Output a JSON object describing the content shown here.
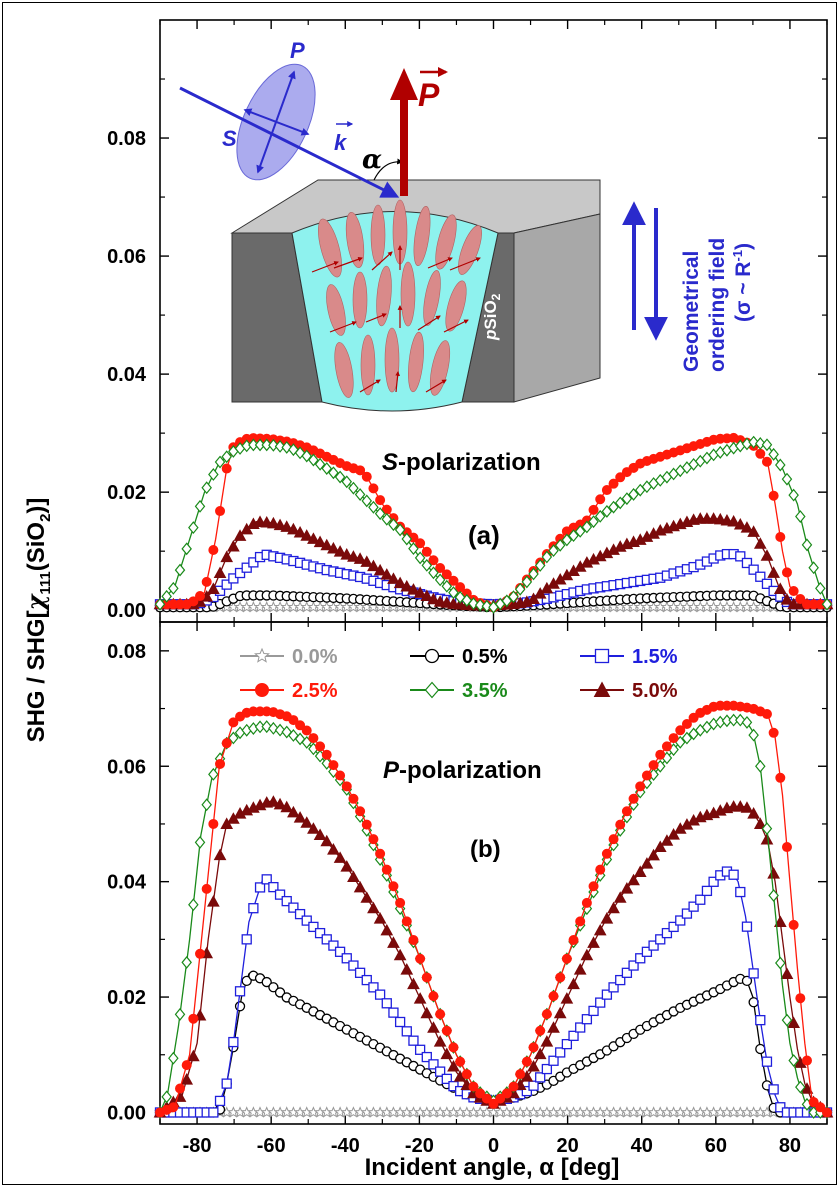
{
  "figure": {
    "ylabel": "SHG / SHG[χ111(SiO2)]",
    "ylabel_parts": {
      "prefix": "SHG / SHG[",
      "chi": "χ",
      "sub": "111",
      "mid": "(SiO",
      "sub2": "2",
      "suffix": ")]"
    },
    "xlabel": "Incident angle, α [deg]",
    "inset": {
      "P_label": "P",
      "S_label": "S",
      "k_label": "k",
      "alpha_label": "α",
      "bigP_label": "P",
      "material_label_prefix": "p",
      "material_label": "SiO",
      "material_sub": "2",
      "field_line1": "Geometrical",
      "field_line2": "ordering field",
      "field_line3": "(σ ~ R",
      "field_sup": "-1",
      "field_close": ")"
    },
    "colors": {
      "s0": "#999999",
      "s05": "#000000",
      "s15": "#1f1fdd",
      "s25": "#ff1a0a",
      "s35": "#1a8a1a",
      "s50": "#7a0a0a",
      "inset_blue": "#2a2acc",
      "arrow_red": "#b00000"
    }
  },
  "chart_data": [
    {
      "panel": "(a)",
      "type": "scatter",
      "annotation": "S-polarization",
      "annotation_italic": "S",
      "annotation_rest": "-polarization",
      "xlim": [
        -90,
        90
      ],
      "ylim": [
        -0.002,
        0.1
      ],
      "yticks": [
        "0.00",
        "0.02",
        "0.04",
        "0.06",
        "0.08"
      ],
      "series": [
        {
          "name": "0.0%",
          "marker": "star",
          "color": "#999999",
          "x": [
            -90,
            -60,
            -30,
            0,
            30,
            60,
            90
          ],
          "y": [
            0.0005,
            0.0005,
            0.0005,
            0.0005,
            0.0005,
            0.0005,
            0.0005
          ]
        },
        {
          "name": "0.5%",
          "marker": "circle-open",
          "color": "#000000",
          "x": [
            -90,
            -76,
            -72,
            -68,
            -60,
            -40,
            -20,
            -10,
            0,
            10,
            20,
            40,
            60,
            70,
            74,
            78,
            90
          ],
          "y": [
            0.0005,
            0.0005,
            0.0015,
            0.0025,
            0.0025,
            0.002,
            0.0012,
            0.0008,
            0.0005,
            0.0008,
            0.0012,
            0.002,
            0.0025,
            0.0025,
            0.0015,
            0.0005,
            0.0005
          ]
        },
        {
          "name": "1.5%",
          "marker": "square-open",
          "color": "#1f1fdd",
          "x": [
            -90,
            -80,
            -76,
            -70,
            -65,
            -62,
            -55,
            -45,
            -35,
            -25,
            -15,
            -8,
            0,
            8,
            15,
            25,
            35,
            45,
            55,
            62,
            66,
            70,
            76,
            80,
            90
          ],
          "y": [
            0.001,
            0.001,
            0.002,
            0.0055,
            0.008,
            0.0095,
            0.0085,
            0.0068,
            0.0055,
            0.0035,
            0.002,
            0.0012,
            0.001,
            0.0012,
            0.002,
            0.0035,
            0.0045,
            0.0055,
            0.0075,
            0.0095,
            0.0095,
            0.007,
            0.003,
            0.001,
            0.001
          ]
        },
        {
          "name": "2.5%",
          "marker": "circle-filled",
          "color": "#ff1a0a",
          "x": [
            -90,
            -82,
            -78,
            -75,
            -72,
            -70,
            -66,
            -60,
            -55,
            -50,
            -45,
            -40,
            -35,
            -30,
            -25,
            -20,
            -15,
            -10,
            -5,
            0,
            5,
            10,
            15,
            20,
            25,
            30,
            35,
            40,
            45,
            50,
            55,
            60,
            65,
            70,
            74,
            76,
            78,
            80,
            84,
            90
          ],
          "y": [
            0.001,
            0.001,
            0.003,
            0.012,
            0.024,
            0.028,
            0.0292,
            0.029,
            0.0285,
            0.0275,
            0.026,
            0.0245,
            0.0235,
            0.018,
            0.014,
            0.0115,
            0.0075,
            0.0045,
            0.0015,
            0.0005,
            0.002,
            0.006,
            0.01,
            0.0135,
            0.015,
            0.02,
            0.023,
            0.025,
            0.026,
            0.027,
            0.028,
            0.029,
            0.0292,
            0.028,
            0.025,
            0.018,
            0.01,
            0.004,
            0.001,
            0.001
          ]
        },
        {
          "name": "3.5%",
          "marker": "diamond-open",
          "color": "#1a8a1a",
          "x": [
            -90,
            -86,
            -82,
            -78,
            -74,
            -70,
            -66,
            -60,
            -55,
            -50,
            -45,
            -40,
            -35,
            -30,
            -25,
            -20,
            -15,
            -10,
            -5,
            0,
            5,
            10,
            15,
            20,
            25,
            30,
            35,
            40,
            45,
            50,
            55,
            60,
            65,
            70,
            74,
            78,
            82,
            85,
            88,
            90
          ],
          "y": [
            0.001,
            0.004,
            0.012,
            0.02,
            0.025,
            0.027,
            0.028,
            0.028,
            0.0275,
            0.026,
            0.024,
            0.022,
            0.019,
            0.016,
            0.0135,
            0.009,
            0.0055,
            0.0025,
            0.001,
            0.0005,
            0.002,
            0.0055,
            0.0095,
            0.012,
            0.014,
            0.0165,
            0.0185,
            0.0205,
            0.022,
            0.0235,
            0.025,
            0.0265,
            0.0275,
            0.0285,
            0.028,
            0.024,
            0.018,
            0.01,
            0.004,
            0.001
          ]
        },
        {
          "name": "5.0%",
          "marker": "triangle-filled",
          "color": "#7a0a0a",
          "x": [
            -90,
            -80,
            -76,
            -72,
            -68,
            -64,
            -60,
            -55,
            -50,
            -45,
            -40,
            -35,
            -30,
            -25,
            -20,
            -15,
            -10,
            -5,
            0,
            5,
            10,
            15,
            20,
            25,
            30,
            35,
            40,
            45,
            50,
            55,
            60,
            65,
            70,
            74,
            77,
            80,
            90
          ],
          "y": [
            0.001,
            0.001,
            0.003,
            0.009,
            0.013,
            0.015,
            0.0148,
            0.014,
            0.0125,
            0.011,
            0.0095,
            0.0085,
            0.0065,
            0.0045,
            0.003,
            0.0015,
            0.001,
            0.0008,
            0.0008,
            0.001,
            0.0015,
            0.004,
            0.006,
            0.008,
            0.0095,
            0.011,
            0.012,
            0.0135,
            0.0145,
            0.0155,
            0.0155,
            0.015,
            0.0135,
            0.009,
            0.004,
            0.001,
            0.001
          ]
        }
      ]
    },
    {
      "panel": "(b)",
      "type": "scatter",
      "annotation": "P-polarization",
      "annotation_italic": "P",
      "annotation_rest": "-polarization",
      "xlim": [
        -90,
        90
      ],
      "ylim": [
        -0.002,
        0.085
      ],
      "xticks": [
        "-80",
        "-60",
        "-40",
        "-20",
        "0",
        "20",
        "40",
        "60",
        "80"
      ],
      "yticks": [
        "0.00",
        "0.02",
        "0.04",
        "0.06",
        "0.08"
      ],
      "legend": {
        "placement": "top",
        "columns": 3
      },
      "series": [
        {
          "name": "0.0%",
          "marker": "star",
          "color": "#999999",
          "x": [
            -90,
            -60,
            -30,
            0,
            30,
            60,
            90
          ],
          "y": [
            0,
            0,
            0,
            0,
            0,
            0,
            0
          ]
        },
        {
          "name": "0.5%",
          "marker": "circle-open",
          "color": "#000000",
          "x": [
            -90,
            -74,
            -72,
            -70,
            -68,
            -66,
            -62,
            -56,
            -50,
            -40,
            -30,
            -20,
            -10,
            -5,
            0,
            5,
            10,
            15,
            20,
            30,
            40,
            50,
            60,
            66,
            68,
            70,
            72,
            74,
            76,
            90
          ],
          "y": [
            0,
            0,
            0.005,
            0.012,
            0.02,
            0.024,
            0.023,
            0.02,
            0.018,
            0.0145,
            0.011,
            0.0075,
            0.004,
            0.0025,
            0.002,
            0.0025,
            0.0035,
            0.005,
            0.007,
            0.0105,
            0.0145,
            0.018,
            0.021,
            0.023,
            0.0235,
            0.02,
            0.011,
            0.004,
            0,
            0
          ]
        },
        {
          "name": "1.5%",
          "marker": "square-open",
          "color": "#1f1fdd",
          "x": [
            -90,
            -75,
            -72,
            -70,
            -68,
            -66,
            -62,
            -58,
            -50,
            -40,
            -30,
            -20,
            -15,
            -10,
            -5,
            0,
            5,
            10,
            15,
            20,
            30,
            40,
            50,
            56,
            60,
            62,
            64,
            66,
            68,
            70,
            72,
            74,
            76,
            78,
            90
          ],
          "y": [
            0,
            0,
            0.005,
            0.013,
            0.023,
            0.033,
            0.041,
            0.038,
            0.033,
            0.027,
            0.02,
            0.011,
            0.0075,
            0.004,
            0.0025,
            0.002,
            0.0025,
            0.004,
            0.008,
            0.012,
            0.02,
            0.027,
            0.033,
            0.037,
            0.0405,
            0.0415,
            0.042,
            0.04,
            0.034,
            0.025,
            0.016,
            0.008,
            0.003,
            0,
            0
          ]
        },
        {
          "name": "2.5%",
          "marker": "circle-filled",
          "color": "#ff1a0a",
          "x": [
            -90,
            -86,
            -82,
            -78,
            -74,
            -70,
            -66,
            -60,
            -55,
            -50,
            -45,
            -40,
            -35,
            -30,
            -25,
            -20,
            -15,
            -10,
            -5,
            0,
            5,
            10,
            15,
            20,
            25,
            30,
            35,
            40,
            45,
            50,
            55,
            60,
            65,
            70,
            74,
            76,
            78,
            80,
            82,
            84,
            86,
            90
          ],
          "y": [
            0,
            0.001,
            0.01,
            0.035,
            0.06,
            0.068,
            0.0695,
            0.0695,
            0.0685,
            0.066,
            0.062,
            0.057,
            0.051,
            0.044,
            0.036,
            0.027,
            0.018,
            0.01,
            0.004,
            0.0015,
            0.004,
            0.01,
            0.018,
            0.027,
            0.036,
            0.044,
            0.051,
            0.057,
            0.062,
            0.066,
            0.069,
            0.0705,
            0.0705,
            0.07,
            0.069,
            0.065,
            0.055,
            0.04,
            0.025,
            0.012,
            0.002,
            0
          ]
        },
        {
          "name": "3.5%",
          "marker": "diamond-open",
          "color": "#1a8a1a",
          "x": [
            -90,
            -88,
            -85,
            -82,
            -79,
            -76,
            -72,
            -68,
            -62,
            -56,
            -50,
            -45,
            -40,
            -35,
            -30,
            -25,
            -20,
            -15,
            -10,
            -5,
            0,
            5,
            10,
            15,
            20,
            25,
            30,
            35,
            40,
            45,
            50,
            55,
            60,
            64,
            68,
            70,
            72,
            74,
            76,
            78,
            80,
            82,
            84,
            86,
            90
          ],
          "y": [
            0,
            0.003,
            0.015,
            0.03,
            0.048,
            0.058,
            0.064,
            0.066,
            0.067,
            0.066,
            0.064,
            0.0605,
            0.0565,
            0.05,
            0.043,
            0.035,
            0.027,
            0.018,
            0.01,
            0.004,
            0.002,
            0.004,
            0.01,
            0.018,
            0.027,
            0.035,
            0.043,
            0.05,
            0.056,
            0.06,
            0.064,
            0.066,
            0.0675,
            0.068,
            0.068,
            0.066,
            0.06,
            0.048,
            0.035,
            0.022,
            0.012,
            0.006,
            0.002,
            0,
            0
          ]
        },
        {
          "name": "5.0%",
          "marker": "triangle-filled",
          "color": "#7a0a0a",
          "x": [
            -90,
            -84,
            -80,
            -77,
            -74,
            -72,
            -68,
            -64,
            -60,
            -56,
            -50,
            -45,
            -40,
            -35,
            -30,
            -25,
            -20,
            -15,
            -10,
            -5,
            0,
            5,
            10,
            15,
            20,
            25,
            30,
            35,
            40,
            45,
            50,
            55,
            60,
            64,
            68,
            70,
            72,
            74,
            76,
            78,
            80,
            82,
            84,
            86,
            90
          ],
          "y": [
            0,
            0.003,
            0.012,
            0.03,
            0.044,
            0.05,
            0.052,
            0.053,
            0.054,
            0.053,
            0.05,
            0.047,
            0.043,
            0.038,
            0.033,
            0.027,
            0.02,
            0.013,
            0.007,
            0.003,
            0.0015,
            0.003,
            0.007,
            0.013,
            0.02,
            0.027,
            0.033,
            0.038,
            0.042,
            0.046,
            0.049,
            0.051,
            0.052,
            0.053,
            0.053,
            0.052,
            0.05,
            0.047,
            0.04,
            0.03,
            0.02,
            0.011,
            0.005,
            0.002,
            0
          ]
        }
      ]
    }
  ]
}
